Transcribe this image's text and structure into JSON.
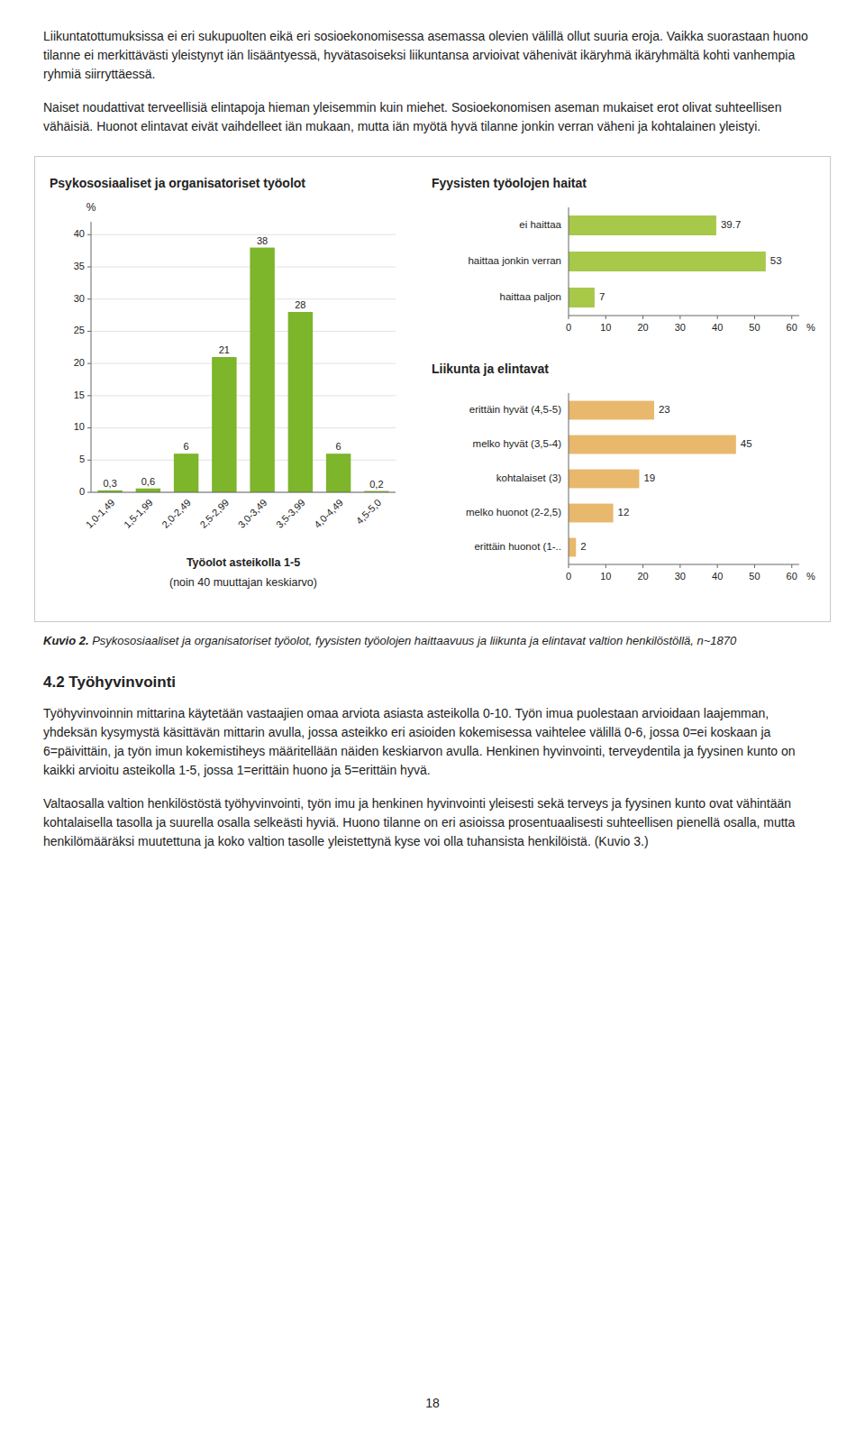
{
  "para1": "Liikuntatottumuksissa ei eri sukupuolten eikä eri sosioekonomisessa asemassa olevien välillä ollut suuria eroja. Vaikka suorastaan huono tilanne ei merkittävästi yleistynyt iän lisääntyessä, hyvätasoiseksi liikuntansa arvioivat vähenivät ikäryhmä ikäryhmältä kohti vanhempia ryhmiä siirryttäessä.",
  "para2": "Naiset noudattivat terveellisiä elintapoja hieman yleisemmin kuin miehet. Sosioekonomisen aseman mukaiset erot olivat suhteellisen vähäisiä. Huonot elintavat eivät vaihdelleet iän mukaan, mutta iän myötä hyvä tilanne jonkin verran väheni ja kohtalainen yleistyi.",
  "chart_data": [
    {
      "type": "bar",
      "title": "Psykososiaaliset ja organisatoriset työolot",
      "categories": [
        "1,0-1,49",
        "1,5-1,99",
        "2,0-2,49",
        "2,5-2,99",
        "3,0-3,49",
        "3,5-3,99",
        "4,0-4,49",
        "4,5-5,0"
      ],
      "values": [
        0.3,
        0.6,
        6,
        21,
        38,
        28,
        6,
        0.2
      ],
      "value_labels": [
        "0,3",
        "0,6",
        "6",
        "21",
        "38",
        "28",
        "6",
        "0,2"
      ],
      "data_labels": true,
      "color": "#7db52b",
      "ylabel": "%",
      "ylim": [
        0,
        42
      ],
      "yticks": [
        0,
        5,
        10,
        15,
        20,
        25,
        30,
        35,
        40
      ],
      "grid": true,
      "xlabel": "Työolot asteikolla 1-5",
      "subtitle": "(noin 40 muuttajan keskiarvo)"
    },
    {
      "type": "bar",
      "orientation": "horizontal",
      "title": "Fyysisten työolojen haitat",
      "categories": [
        "ei haittaa",
        "haittaa jonkin verran",
        "haittaa paljon"
      ],
      "values": [
        39.7,
        53,
        7
      ],
      "data_labels": true,
      "color": "#a8c84a",
      "xlabel": "%",
      "xlim": [
        0,
        62
      ],
      "xticks": [
        0,
        10,
        20,
        30,
        40,
        50,
        60
      ],
      "grid": false
    },
    {
      "type": "bar",
      "orientation": "horizontal",
      "title": "Liikunta ja elintavat",
      "categories": [
        "erittäin hyvät (4,5-5)",
        "melko hyvät (3,5-4)",
        "kohtalaiset (3)",
        "melko huonot (2-2,5)",
        "erittäin huonot (1-.."
      ],
      "values": [
        23,
        45,
        19,
        12,
        2
      ],
      "data_labels": true,
      "color": "#e8b86d",
      "xlabel": "%",
      "xlim": [
        0,
        62
      ],
      "xticks": [
        0,
        10,
        20,
        30,
        40,
        50,
        60
      ],
      "grid": false
    }
  ],
  "caption_bold": "Kuvio 2.",
  "caption_rest": " Psykososiaaliset ja organisatoriset työolot, fyysisten työolojen haittaavuus ja liikunta ja elintavat valtion henkilöstöllä, n~1870",
  "section_title": "4.2 Työhyvinvointi",
  "body_para1": "Työhyvinvoinnin mittarina käytetään vastaajien omaa arviota asiasta asteikolla 0-10. Työn imua puolestaan arvioidaan laajemman, yhdeksän kysymystä käsittävän mittarin avulla, jossa asteikko eri asioiden kokemisessa vaihtelee välillä 0-6, jossa 0=ei koskaan ja 6=päivittäin, ja työn imun kokemistiheys määritellään näiden keskiarvon avulla. Henkinen hyvinvointi, terveydentila ja fyysinen kunto on kaikki arvioitu asteikolla 1-5, jossa 1=erittäin huono ja 5=erittäin hyvä.",
  "body_para2": "Valtaosalla valtion henkilöstöstä työhyvinvointi, työn imu ja henkinen hyvinvointi yleisesti sekä terveys ja fyysinen kunto ovat vähintään kohtalaisella tasolla ja suurella osalla selkeästi hyviä. Huono tilanne on eri asioissa prosentuaalisesti suhteellisen pienellä osalla, mutta henkilömääräksi muutettuna ja koko valtion tasolle yleistettynä kyse voi olla tuhansista henkilöistä. (Kuvio 3.)",
  "page_number": "18"
}
